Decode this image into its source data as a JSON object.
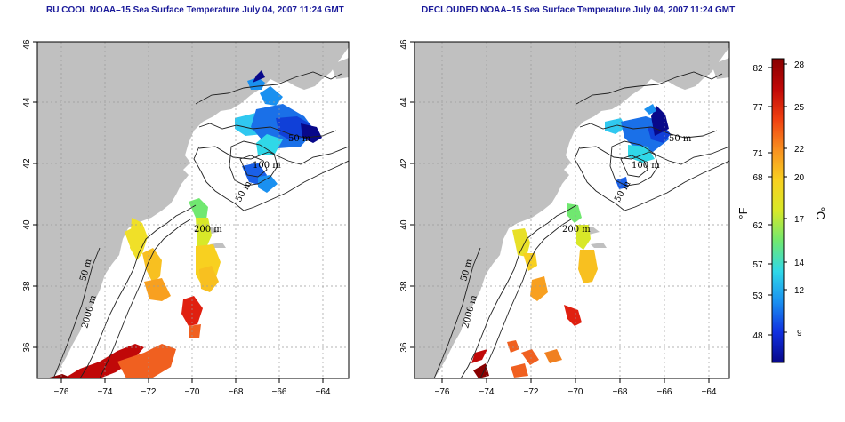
{
  "maps": [
    {
      "id": "left",
      "title": "RU COOL NOAA–15 Sea Surface Temperature July 04, 2007 11:24 GMT",
      "contour_labels": [
        "50 m",
        "100 m",
        "50 m",
        "200 m",
        "50 m",
        "2000 m",
        "100 m"
      ]
    },
    {
      "id": "right",
      "title": "DECLOUDED NOAA–15 Sea Surface Temperature July 04, 2007 11:24 GMT",
      "contour_labels": [
        "50 m",
        "100 m",
        "50 m",
        "200 m",
        "50 m",
        "2000 m",
        "100 m"
      ]
    }
  ],
  "axes": {
    "x_ticks": [
      "−76",
      "−74",
      "−72",
      "−70",
      "−68",
      "−66",
      "−64"
    ],
    "y_ticks": [
      "36",
      "38",
      "40",
      "42",
      "44",
      "46"
    ],
    "lon_range": [
      -77,
      -63
    ],
    "lat_range": [
      35,
      46
    ],
    "grid": "dotted"
  },
  "colorbar": {
    "fahrenheit_unit": "°F",
    "celsius_unit": "°C",
    "fahrenheit_ticks": [
      "82",
      "77",
      "71",
      "68",
      "62",
      "57",
      "53",
      "48"
    ],
    "celsius_ticks": [
      "28",
      "25",
      "22",
      "20",
      "17",
      "14",
      "12",
      "9"
    ],
    "colors": [
      "#08088a",
      "#1030e0",
      "#1a90f0",
      "#30d8e8",
      "#70e870",
      "#d8e828",
      "#f8d020",
      "#f89020",
      "#f04010",
      "#c00808",
      "#880000"
    ]
  },
  "colors": {
    "land": "#c0c0c0",
    "ocean": "#ffffff",
    "contour": "#202020",
    "title": "#1a1a9a"
  }
}
